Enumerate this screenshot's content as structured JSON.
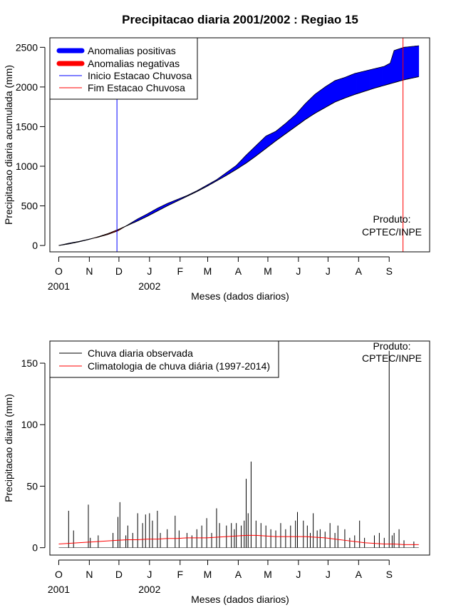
{
  "title": "Precipitacao diaria 2001/2002 : Regiao 15",
  "colors": {
    "positive": "#0000ff",
    "negative": "#ff0000",
    "start_line": "#0000ff",
    "end_line": "#ff0000",
    "observed": "#000000",
    "climatology": "#ff0000"
  },
  "watermark": [
    "Produto:",
    "CPTEC/INPE"
  ],
  "chart_data": [
    {
      "type": "area",
      "title": "Precipitacao diaria 2001/2002 : Regiao 15",
      "xlabel": "Meses (dados diarios)",
      "ylabel": "Precipitacao diaria acumulada (mm)",
      "x_unit": "days since 2001-10-01",
      "xlim": [
        -9,
        376
      ],
      "ylim": [
        -80,
        2620
      ],
      "yticks": [
        0,
        500,
        1000,
        1500,
        2000,
        2500
      ],
      "month_ticks": [
        {
          "label": "O",
          "day": 0
        },
        {
          "label": "N",
          "day": 31
        },
        {
          "label": "D",
          "day": 61
        },
        {
          "label": "J",
          "day": 92
        },
        {
          "label": "F",
          "day": 123
        },
        {
          "label": "M",
          "day": 151
        },
        {
          "label": "A",
          "day": 182
        },
        {
          "label": "M",
          "day": 212
        },
        {
          "label": "J",
          "day": 243
        },
        {
          "label": "J",
          "day": 273
        },
        {
          "label": "A",
          "day": 304
        },
        {
          "label": "S",
          "day": 335
        }
      ],
      "year_labels": [
        {
          "label": "2001",
          "day": 0
        },
        {
          "label": "2002",
          "day": 92
        }
      ],
      "legend": {
        "position": "top-left",
        "entries": [
          "Anomalias positivas",
          "Anomalias negativas",
          "Inicio Estacao Chuvosa",
          "Fim Estacao Chuvosa"
        ]
      },
      "season_start_day": 59,
      "season_end_day": 349,
      "observed_cumulative": [
        [
          0,
          0
        ],
        [
          10,
          28
        ],
        [
          20,
          50
        ],
        [
          30,
          78
        ],
        [
          40,
          105
        ],
        [
          50,
          140
        ],
        [
          60,
          185
        ],
        [
          70,
          260
        ],
        [
          80,
          335
        ],
        [
          90,
          400
        ],
        [
          100,
          470
        ],
        [
          110,
          530
        ],
        [
          120,
          580
        ],
        [
          130,
          630
        ],
        [
          140,
          690
        ],
        [
          150,
          760
        ],
        [
          160,
          830
        ],
        [
          170,
          920
        ],
        [
          180,
          1010
        ],
        [
          190,
          1140
        ],
        [
          200,
          1260
        ],
        [
          210,
          1380
        ],
        [
          220,
          1440
        ],
        [
          230,
          1540
        ],
        [
          240,
          1650
        ],
        [
          250,
          1790
        ],
        [
          260,
          1910
        ],
        [
          270,
          2000
        ],
        [
          280,
          2080
        ],
        [
          290,
          2120
        ],
        [
          300,
          2170
        ],
        [
          310,
          2200
        ],
        [
          320,
          2230
        ],
        [
          330,
          2260
        ],
        [
          336,
          2300
        ],
        [
          340,
          2460
        ],
        [
          350,
          2500
        ],
        [
          365,
          2520
        ]
      ],
      "climatology_cumulative": [
        [
          0,
          0
        ],
        [
          10,
          20
        ],
        [
          20,
          45
        ],
        [
          30,
          75
        ],
        [
          40,
          110
        ],
        [
          50,
          150
        ],
        [
          60,
          200
        ],
        [
          70,
          255
        ],
        [
          80,
          310
        ],
        [
          90,
          370
        ],
        [
          100,
          435
        ],
        [
          110,
          500
        ],
        [
          120,
          560
        ],
        [
          130,
          620
        ],
        [
          140,
          680
        ],
        [
          150,
          745
        ],
        [
          160,
          815
        ],
        [
          170,
          885
        ],
        [
          180,
          960
        ],
        [
          190,
          1040
        ],
        [
          200,
          1130
        ],
        [
          210,
          1225
        ],
        [
          220,
          1320
        ],
        [
          230,
          1410
        ],
        [
          240,
          1500
        ],
        [
          250,
          1590
        ],
        [
          260,
          1670
        ],
        [
          270,
          1740
        ],
        [
          280,
          1810
        ],
        [
          290,
          1860
        ],
        [
          300,
          1905
        ],
        [
          310,
          1945
        ],
        [
          320,
          1985
        ],
        [
          330,
          2020
        ],
        [
          340,
          2055
        ],
        [
          350,
          2090
        ],
        [
          365,
          2130
        ]
      ]
    },
    {
      "type": "bar",
      "xlabel": "Meses (dados diarios)",
      "ylabel": "Precipitacao diaria (mm)",
      "x_unit": "days since 2001-10-01",
      "xlim": [
        -9,
        376
      ],
      "ylim": [
        -6,
        168
      ],
      "yticks": [
        0,
        50,
        100,
        150
      ],
      "month_ticks": [
        {
          "label": "O",
          "day": 0
        },
        {
          "label": "N",
          "day": 31
        },
        {
          "label": "D",
          "day": 61
        },
        {
          "label": "J",
          "day": 92
        },
        {
          "label": "F",
          "day": 123
        },
        {
          "label": "M",
          "day": 151
        },
        {
          "label": "A",
          "day": 182
        },
        {
          "label": "M",
          "day": 212
        },
        {
          "label": "J",
          "day": 243
        },
        {
          "label": "J",
          "day": 273
        },
        {
          "label": "A",
          "day": 304
        },
        {
          "label": "S",
          "day": 335
        }
      ],
      "year_labels": [
        {
          "label": "2001",
          "day": 0
        },
        {
          "label": "2002",
          "day": 92
        }
      ],
      "legend": {
        "position": "top-left",
        "entries": [
          "Chuva diaria observada",
          "Climatologia de chuva diária (1997-2014)"
        ]
      },
      "observed_daily": [
        [
          10,
          30
        ],
        [
          15,
          14
        ],
        [
          30,
          35
        ],
        [
          32,
          8
        ],
        [
          40,
          10
        ],
        [
          55,
          12
        ],
        [
          60,
          25
        ],
        [
          62,
          37
        ],
        [
          68,
          10
        ],
        [
          70,
          18
        ],
        [
          75,
          12
        ],
        [
          80,
          28
        ],
        [
          85,
          20
        ],
        [
          88,
          27
        ],
        [
          92,
          28
        ],
        [
          95,
          22
        ],
        [
          100,
          30
        ],
        [
          103,
          12
        ],
        [
          110,
          15
        ],
        [
          118,
          26
        ],
        [
          122,
          14
        ],
        [
          130,
          12
        ],
        [
          135,
          10
        ],
        [
          140,
          15
        ],
        [
          145,
          18
        ],
        [
          150,
          24
        ],
        [
          155,
          12
        ],
        [
          160,
          32
        ],
        [
          163,
          20
        ],
        [
          170,
          18
        ],
        [
          175,
          20
        ],
        [
          178,
          15
        ],
        [
          180,
          20
        ],
        [
          185,
          18
        ],
        [
          188,
          22
        ],
        [
          190,
          56
        ],
        [
          192,
          28
        ],
        [
          195,
          70
        ],
        [
          200,
          22
        ],
        [
          205,
          20
        ],
        [
          210,
          18
        ],
        [
          215,
          15
        ],
        [
          220,
          14
        ],
        [
          225,
          20
        ],
        [
          230,
          15
        ],
        [
          235,
          18
        ],
        [
          240,
          22
        ],
        [
          242,
          29
        ],
        [
          248,
          22
        ],
        [
          252,
          18
        ],
        [
          255,
          12
        ],
        [
          258,
          28
        ],
        [
          262,
          14
        ],
        [
          265,
          15
        ],
        [
          270,
          13
        ],
        [
          275,
          20
        ],
        [
          280,
          12
        ],
        [
          283,
          18
        ],
        [
          290,
          15
        ],
        [
          295,
          8
        ],
        [
          300,
          10
        ],
        [
          305,
          22
        ],
        [
          310,
          8
        ],
        [
          320,
          10
        ],
        [
          325,
          12
        ],
        [
          330,
          8
        ],
        [
          335,
          160
        ],
        [
          338,
          10
        ],
        [
          340,
          12
        ],
        [
          345,
          15
        ],
        [
          350,
          6
        ],
        [
          360,
          5
        ]
      ],
      "climatology_daily": [
        [
          0,
          3
        ],
        [
          10,
          3.5
        ],
        [
          20,
          4
        ],
        [
          30,
          4.5
        ],
        [
          40,
          5
        ],
        [
          50,
          5.5
        ],
        [
          60,
          6
        ],
        [
          70,
          6.5
        ],
        [
          80,
          6.5
        ],
        [
          90,
          7
        ],
        [
          100,
          7
        ],
        [
          110,
          7.5
        ],
        [
          120,
          7.5
        ],
        [
          130,
          8
        ],
        [
          140,
          8
        ],
        [
          150,
          8
        ],
        [
          160,
          8.5
        ],
        [
          170,
          9
        ],
        [
          180,
          9.5
        ],
        [
          190,
          10
        ],
        [
          200,
          10
        ],
        [
          210,
          9.5
        ],
        [
          220,
          9
        ],
        [
          230,
          9
        ],
        [
          240,
          9
        ],
        [
          250,
          9
        ],
        [
          260,
          8.5
        ],
        [
          270,
          8
        ],
        [
          280,
          7
        ],
        [
          290,
          6
        ],
        [
          300,
          5
        ],
        [
          310,
          4
        ],
        [
          320,
          3.5
        ],
        [
          330,
          3
        ],
        [
          340,
          3
        ],
        [
          350,
          2.5
        ],
        [
          365,
          2.5
        ]
      ]
    }
  ]
}
